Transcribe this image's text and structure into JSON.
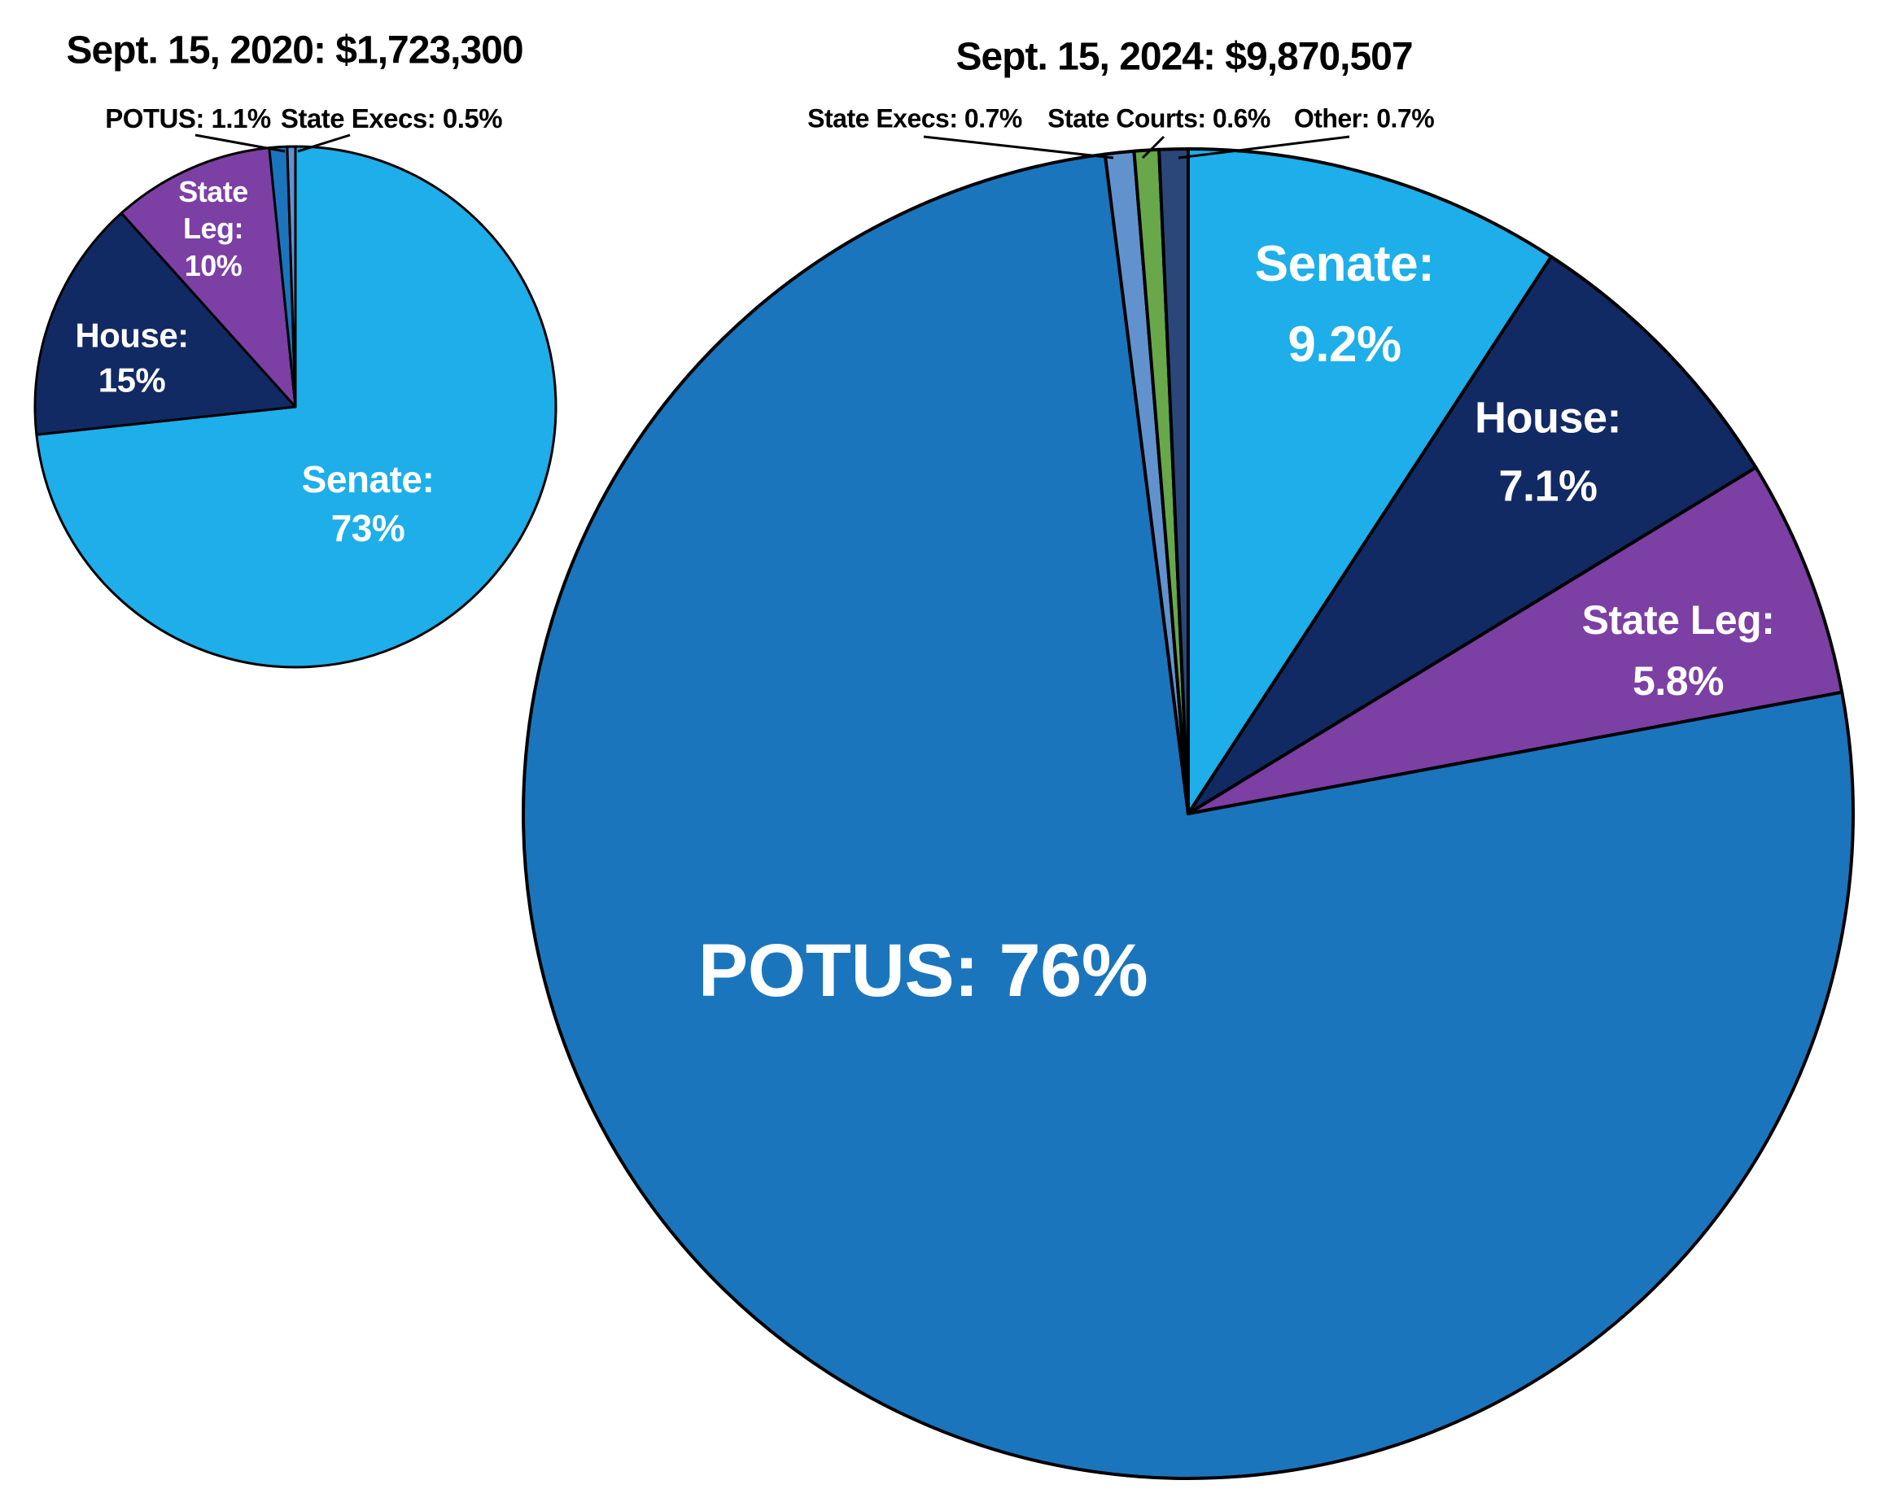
{
  "page": {
    "background": "#ffffff",
    "outline_color": "#000000",
    "label_color_inside": "#ffffff",
    "label_color_callout": "#000000"
  },
  "chart_data": [
    {
      "type": "pie",
      "title": "Sept. 15, 2020: $1,723,300",
      "date": "Sept. 15, 2020",
      "total": "$1,723,300",
      "direction": "clockwise",
      "start_angle_deg": 0,
      "slices": [
        {
          "label": "Senate",
          "value": 73,
          "display": "Senate:\n73%",
          "color": "#1EAEE9",
          "label_style": "inside"
        },
        {
          "label": "House",
          "value": 15,
          "display": "House:\n15%",
          "color": "#122A63",
          "label_style": "inside"
        },
        {
          "label": "State Leg",
          "value": 10,
          "display": "State\nLeg:\n10%",
          "color": "#7C3FA4",
          "label_style": "inside"
        },
        {
          "label": "POTUS",
          "value": 1.1,
          "display": "POTUS: 1.1%",
          "color": "#1B75BC",
          "label_style": "callout"
        },
        {
          "label": "State Execs",
          "value": 0.5,
          "display": "State Execs: 0.5%",
          "color": "#6292CE",
          "label_style": "callout"
        }
      ]
    },
    {
      "type": "pie",
      "title": "Sept. 15, 2024: $9,870,507",
      "date": "Sept. 15, 2024",
      "total": "$9,870,507",
      "direction": "clockwise",
      "start_angle_deg": 0,
      "slices": [
        {
          "label": "Senate",
          "value": 9.2,
          "display": "Senate:\n9.2%",
          "color": "#1EAEE9",
          "label_style": "inside"
        },
        {
          "label": "House",
          "value": 7.1,
          "display": "House:\n7.1%",
          "color": "#122A63",
          "label_style": "inside"
        },
        {
          "label": "State Leg",
          "value": 5.8,
          "display": "State Leg:\n5.8%",
          "color": "#7C3FA4",
          "label_style": "inside"
        },
        {
          "label": "POTUS",
          "value": 76,
          "display": "POTUS: 76%",
          "color": "#1B75BC",
          "label_style": "inside"
        },
        {
          "label": "State Execs",
          "value": 0.7,
          "display": "State Execs: 0.7%",
          "color": "#6292CE",
          "label_style": "callout"
        },
        {
          "label": "State Courts",
          "value": 0.6,
          "display": "State Courts: 0.6%",
          "color": "#69A74B",
          "label_style": "callout"
        },
        {
          "label": "Other",
          "value": 0.7,
          "display": "Other: 0.7%",
          "color": "#2B4779",
          "label_style": "callout"
        }
      ]
    }
  ]
}
